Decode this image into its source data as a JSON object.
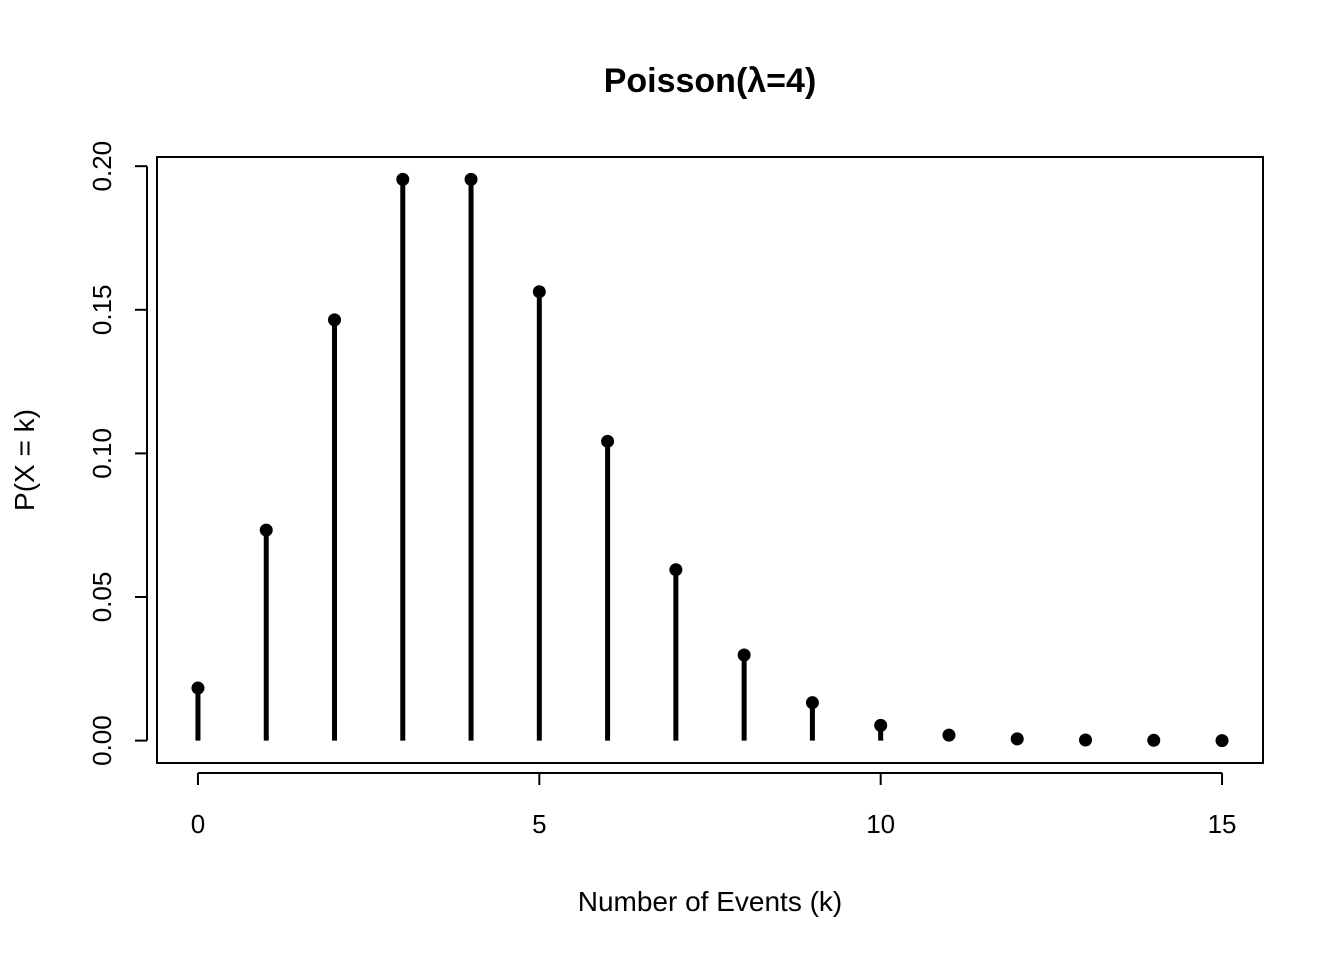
{
  "chart_data": {
    "type": "scatter",
    "style": "lollipop",
    "title": "Poisson(λ=4)",
    "xlabel": "Number of Events (k)",
    "ylabel": "P(X = k)",
    "x": [
      0,
      1,
      2,
      3,
      4,
      5,
      6,
      7,
      8,
      9,
      10,
      11,
      12,
      13,
      14,
      15
    ],
    "y": [
      0.0183,
      0.0733,
      0.1465,
      0.1954,
      0.1954,
      0.1563,
      0.1042,
      0.0595,
      0.0298,
      0.0132,
      0.0053,
      0.0019,
      0.0006,
      0.0002,
      0.0001,
      0.0
    ],
    "xlim": [
      -0.6,
      15.6
    ],
    "ylim": [
      -0.0078,
      0.2032
    ],
    "xticks": [
      0,
      5,
      10,
      15
    ],
    "xtick_labels": [
      "0",
      "5",
      "10",
      "15"
    ],
    "yticks": [
      0.0,
      0.05,
      0.1,
      0.15,
      0.2
    ],
    "ytick_labels": [
      "0.00",
      "0.05",
      "0.10",
      "0.15",
      "0.20"
    ],
    "grid": false,
    "color": "#000000"
  }
}
